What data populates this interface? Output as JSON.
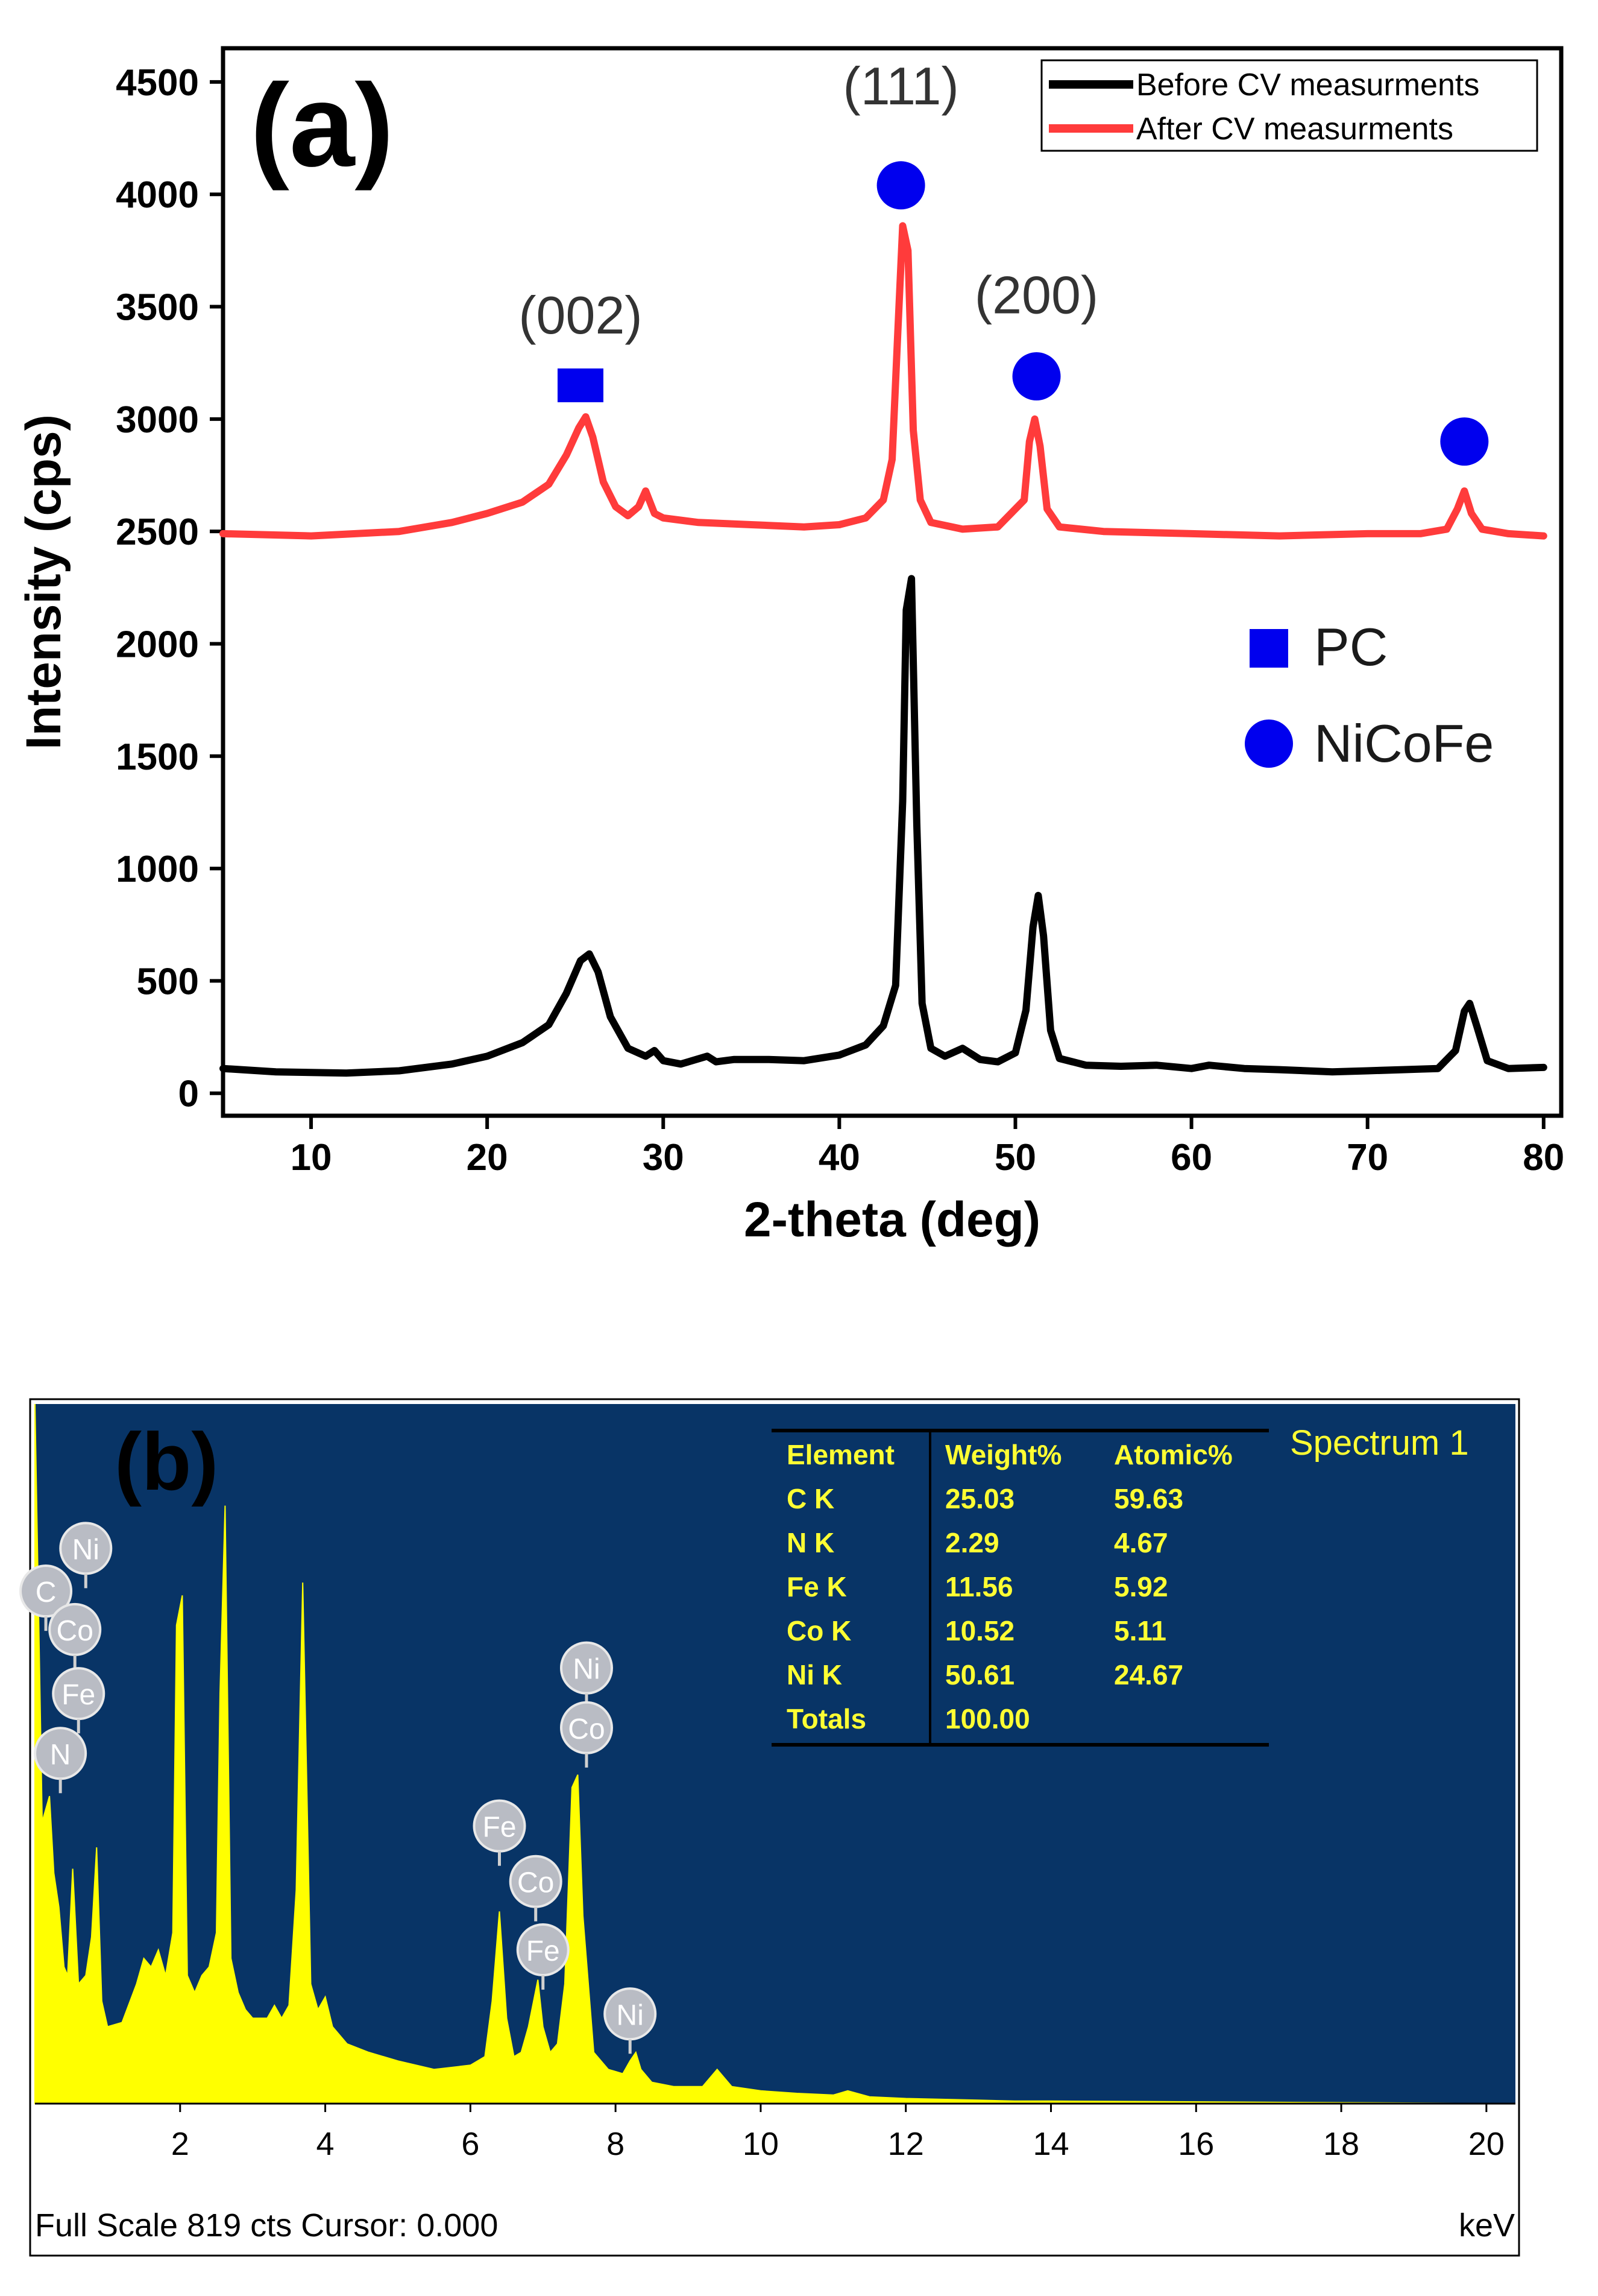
{
  "chart_data": [
    {
      "type": "line",
      "panel_label": "(a)",
      "title": "",
      "xlabel": "2-theta (deg)",
      "ylabel": "Intensity (cps)",
      "xlim": [
        5,
        81
      ],
      "ylim": [
        -100,
        4650
      ],
      "xticks": [
        10,
        20,
        30,
        40,
        50,
        60,
        70,
        80
      ],
      "yticks": [
        0,
        500,
        1000,
        1500,
        2000,
        2500,
        3000,
        3500,
        4000,
        4500
      ],
      "series": [
        {
          "name": "Before CV measurments",
          "color": "#000000",
          "x": [
            5,
            8,
            12,
            15,
            18,
            20,
            22,
            23.5,
            24.5,
            25.3,
            25.8,
            26.3,
            27,
            28,
            29,
            29.5,
            30,
            31,
            32.5,
            33,
            34,
            36,
            38,
            40,
            41.5,
            42.5,
            43.2,
            43.6,
            43.8,
            44.1,
            44.4,
            44.7,
            45.2,
            46,
            47,
            48,
            49,
            50,
            50.6,
            51,
            51.3,
            51.6,
            52,
            52.5,
            54,
            56,
            58,
            60,
            61,
            63,
            65,
            68,
            70,
            72,
            74,
            75,
            75.5,
            75.8,
            76.2,
            76.8,
            78,
            80
          ],
          "y": [
            110,
            95,
            90,
            100,
            130,
            165,
            225,
            305,
            445,
            590,
            620,
            540,
            340,
            200,
            165,
            190,
            145,
            130,
            165,
            140,
            150,
            150,
            145,
            170,
            215,
            300,
            480,
            1300,
            2150,
            2290,
            1200,
            400,
            200,
            165,
            200,
            150,
            140,
            180,
            370,
            740,
            880,
            700,
            280,
            155,
            125,
            120,
            125,
            110,
            125,
            110,
            105,
            95,
            100,
            105,
            110,
            190,
            365,
            400,
            300,
            145,
            110,
            115
          ]
        },
        {
          "name": "After CV measurments",
          "color": "#ff3b3b",
          "x": [
            5,
            10,
            15,
            18,
            20,
            22,
            23.5,
            24.5,
            25.2,
            25.6,
            26,
            26.6,
            27.3,
            28,
            28.6,
            29,
            29.5,
            30,
            32,
            35,
            38,
            40,
            41.5,
            42.5,
            43,
            43.3,
            43.6,
            43.9,
            44.2,
            44.6,
            45.2,
            47,
            49,
            50.5,
            50.8,
            51.1,
            51.4,
            51.8,
            52.5,
            55,
            60,
            65,
            70,
            73,
            74.5,
            75.1,
            75.5,
            75.9,
            76.5,
            78,
            80
          ],
          "y": [
            2490,
            2480,
            2500,
            2540,
            2580,
            2630,
            2710,
            2840,
            2960,
            3010,
            2920,
            2720,
            2610,
            2570,
            2610,
            2680,
            2580,
            2560,
            2540,
            2530,
            2520,
            2530,
            2560,
            2640,
            2820,
            3350,
            3860,
            3750,
            2950,
            2640,
            2540,
            2510,
            2520,
            2640,
            2900,
            3000,
            2880,
            2600,
            2520,
            2500,
            2490,
            2480,
            2490,
            2490,
            2510,
            2600,
            2680,
            2580,
            2510,
            2490,
            2480
          ]
        }
      ],
      "legend": {
        "position": "top-right",
        "entries": [
          "Before CV measurments",
          "After CV measurments"
        ]
      },
      "marker_legend": {
        "position": "right",
        "entries": [
          {
            "label": "PC",
            "shape": "square"
          },
          {
            "label": "NiCoFe",
            "shape": "circle"
          }
        ]
      },
      "markers": [
        {
          "shape": "square",
          "x": 25.3,
          "y": 3150
        },
        {
          "shape": "circle",
          "x": 43.5,
          "y": 4040
        },
        {
          "shape": "circle",
          "x": 51.2,
          "y": 3190
        },
        {
          "shape": "circle",
          "x": 75.5,
          "y": 2900
        }
      ],
      "annotations": [
        {
          "text": "(002)",
          "x": 25.3,
          "y": 3380
        },
        {
          "text": "(111)",
          "x": 43.5,
          "y": 4400
        },
        {
          "text": "(200)",
          "x": 51.2,
          "y": 3470
        }
      ],
      "grid": false
    },
    {
      "type": "area",
      "panel_label": "(b)",
      "title": "Spectrum 1",
      "xlabel": "keV",
      "ylabel": "",
      "xlim": [
        0,
        20.4
      ],
      "ylim": [
        0,
        819
      ],
      "xticks": [
        2,
        4,
        6,
        8,
        10,
        12,
        14,
        16,
        18,
        20
      ],
      "footer": "Full Scale 819 cts Cursor: 0.000",
      "series": [
        {
          "name": "Spectrum 1",
          "color": "#ffff00",
          "x": [
            0,
            0.1,
            0.2,
            0.26,
            0.33,
            0.4,
            0.45,
            0.52,
            0.6,
            0.7,
            0.78,
            0.85,
            0.92,
            1.0,
            1.2,
            1.4,
            1.5,
            1.6,
            1.7,
            1.8,
            1.9,
            1.95,
            2.03,
            2.1,
            2.2,
            2.3,
            2.4,
            2.5,
            2.55,
            2.62,
            2.7,
            2.8,
            2.9,
            3.0,
            3.2,
            3.3,
            3.4,
            3.5,
            3.6,
            3.69,
            3.8,
            3.9,
            4.0,
            4.1,
            4.3,
            4.6,
            5.0,
            5.5,
            6.0,
            6.2,
            6.3,
            6.4,
            6.5,
            6.6,
            6.7,
            6.8,
            6.93,
            7.0,
            7.1,
            7.2,
            7.3,
            7.4,
            7.48,
            7.55,
            7.7,
            7.9,
            8.1,
            8.2,
            8.28,
            8.35,
            8.5,
            8.8,
            9.2,
            9.4,
            9.6,
            10.0,
            10.5,
            11.0,
            11.2,
            11.5,
            12.0,
            12.5,
            13.0,
            13.5,
            14.0,
            20.4
          ],
          "y": [
            819,
            330,
            360,
            270,
            230,
            160,
            150,
            275,
            140,
            150,
            195,
            300,
            120,
            90,
            95,
            140,
            170,
            160,
            180,
            150,
            200,
            560,
            595,
            150,
            130,
            150,
            160,
            200,
            480,
            700,
            170,
            130,
            110,
            100,
            100,
            115,
            100,
            115,
            250,
            610,
            140,
            110,
            125,
            90,
            70,
            60,
            50,
            40,
            45,
            55,
            120,
            225,
            100,
            55,
            60,
            90,
            145,
            90,
            60,
            70,
            140,
            370,
            385,
            220,
            60,
            40,
            35,
            50,
            60,
            40,
            25,
            20,
            20,
            40,
            20,
            15,
            12,
            10,
            15,
            8,
            6,
            5,
            4,
            3,
            3,
            0
          ]
        }
      ],
      "element_labels": [
        {
          "text": "Ni",
          "x": 0.7,
          "y": 650
        },
        {
          "text": "C",
          "x": 0.15,
          "y": 600
        },
        {
          "text": "Co",
          "x": 0.55,
          "y": 555
        },
        {
          "text": "Fe",
          "x": 0.6,
          "y": 480
        },
        {
          "text": "N",
          "x": 0.35,
          "y": 410
        },
        {
          "text": "Ni",
          "x": 7.6,
          "y": 510
        },
        {
          "text": "Co",
          "x": 7.6,
          "y": 440
        },
        {
          "text": "Fe",
          "x": 6.4,
          "y": 325
        },
        {
          "text": "Co",
          "x": 6.9,
          "y": 260
        },
        {
          "text": "Fe",
          "x": 7.0,
          "y": 180
        },
        {
          "text": "Ni",
          "x": 8.2,
          "y": 105
        }
      ],
      "composition_table": {
        "columns": [
          "Element",
          "Weight%",
          "Atomic%"
        ],
        "rows": [
          [
            "C K",
            "25.03",
            "59.63"
          ],
          [
            "N K",
            "2.29",
            "4.67"
          ],
          [
            "Fe K",
            "11.56",
            "5.92"
          ],
          [
            "Co K",
            "10.52",
            "5.11"
          ],
          [
            "Ni K",
            "50.61",
            "24.67"
          ],
          [
            "Totals",
            "100.00",
            ""
          ]
        ]
      },
      "grid": false
    }
  ],
  "colors": {
    "eds_background": "#083466",
    "eds_spectrum": "#ffff00",
    "eds_text": "#ffff33",
    "marker_blue": "#0000ee"
  }
}
